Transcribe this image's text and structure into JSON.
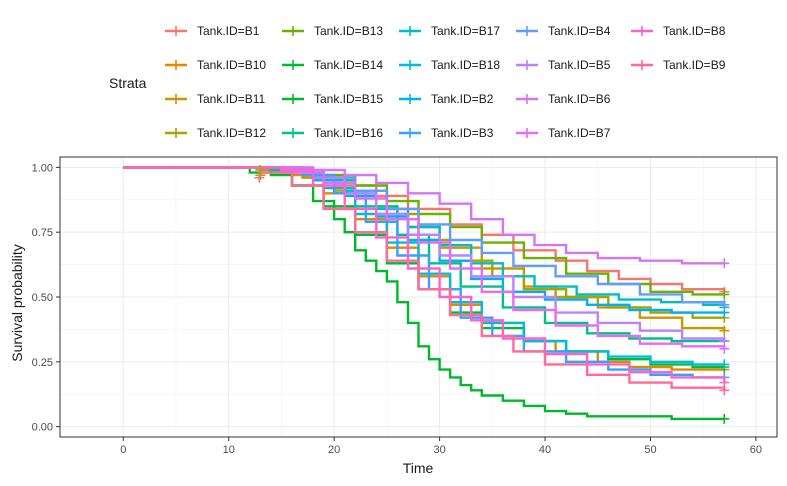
{
  "chart_data": {
    "type": "line",
    "step": true,
    "xlabel": "Time",
    "ylabel": "Survival probability",
    "xlim": [
      -6,
      62
    ],
    "ylim": [
      -0.04,
      1.04
    ],
    "xticks": [
      0,
      10,
      20,
      30,
      40,
      50,
      60
    ],
    "yticks": [
      0.0,
      0.25,
      0.5,
      0.75,
      1.0
    ],
    "ytick_labels": [
      "0.00",
      "0.25",
      "0.50",
      "0.75",
      "1.00"
    ],
    "grid": true,
    "legend": {
      "title": "Strata",
      "position": "top",
      "columns": [
        [
          "Tank.ID=B1",
          "Tank.ID=B10",
          "Tank.ID=B11",
          "Tank.ID=B12"
        ],
        [
          "Tank.ID=B13",
          "Tank.ID=B14",
          "Tank.ID=B15",
          "Tank.ID=B16"
        ],
        [
          "Tank.ID=B17",
          "Tank.ID=B18",
          "Tank.ID=B2",
          "Tank.ID=B3"
        ],
        [
          "Tank.ID=B4",
          "Tank.ID=B5",
          "Tank.ID=B6",
          "Tank.ID=B7"
        ],
        [
          "Tank.ID=B8",
          "Tank.ID=B9"
        ]
      ]
    },
    "series": [
      {
        "name": "Tank.ID=B1",
        "color": "#F8766D",
        "x": [
          0,
          14,
          17,
          20,
          24,
          27,
          31,
          34,
          37,
          41,
          44,
          47,
          50,
          53,
          57
        ],
        "y": [
          1,
          0.99,
          0.97,
          0.93,
          0.89,
          0.84,
          0.78,
          0.74,
          0.68,
          0.64,
          0.6,
          0.57,
          0.55,
          0.53,
          0.52
        ]
      },
      {
        "name": "Tank.ID=B10",
        "color": "#E58700",
        "x": [
          0,
          16,
          19,
          22,
          25,
          28,
          31,
          34,
          38,
          41,
          45,
          48,
          52,
          57
        ],
        "y": [
          1,
          0.97,
          0.9,
          0.8,
          0.69,
          0.58,
          0.47,
          0.4,
          0.33,
          0.29,
          0.25,
          0.23,
          0.22,
          0.22
        ]
      },
      {
        "name": "Tank.ID=B11",
        "color": "#C99800",
        "x": [
          0,
          13,
          17,
          20,
          24,
          27,
          30,
          34,
          38,
          41,
          45,
          49,
          53,
          57
        ],
        "y": [
          1,
          0.99,
          0.96,
          0.91,
          0.84,
          0.77,
          0.69,
          0.61,
          0.54,
          0.5,
          0.46,
          0.42,
          0.38,
          0.37
        ]
      },
      {
        "name": "Tank.ID=B12",
        "color": "#A3A500",
        "x": [
          0,
          14,
          18,
          21,
          25,
          28,
          31,
          35,
          38,
          42,
          46,
          50,
          54,
          57
        ],
        "y": [
          1,
          0.99,
          0.97,
          0.91,
          0.82,
          0.72,
          0.64,
          0.58,
          0.53,
          0.5,
          0.46,
          0.44,
          0.42,
          0.42
        ]
      },
      {
        "name": "Tank.ID=B13",
        "color": "#6BB100",
        "x": [
          0,
          15,
          18,
          22,
          25,
          28,
          31,
          34,
          38,
          42,
          46,
          50,
          54,
          57
        ],
        "y": [
          1,
          0.99,
          0.97,
          0.93,
          0.87,
          0.82,
          0.77,
          0.71,
          0.65,
          0.59,
          0.55,
          0.52,
          0.51,
          0.51
        ]
      },
      {
        "name": "Tank.ID=B14",
        "color": "#00BA38",
        "x": [
          0,
          12,
          16,
          19,
          22,
          25,
          28,
          31,
          34,
          38,
          42,
          46,
          50,
          54,
          57
        ],
        "y": [
          1,
          0.98,
          0.93,
          0.85,
          0.74,
          0.63,
          0.53,
          0.44,
          0.38,
          0.33,
          0.29,
          0.26,
          0.24,
          0.23,
          0.23
        ]
      },
      {
        "name": "Tank.ID=B15",
        "color": "#00B82B",
        "x": [
          0,
          14,
          16,
          18,
          20,
          21,
          22,
          23,
          24,
          25,
          26,
          27,
          28,
          29,
          30,
          31,
          32,
          33,
          34,
          36,
          38,
          40,
          42,
          44,
          48,
          52,
          57
        ],
        "y": [
          1,
          0.97,
          0.93,
          0.87,
          0.8,
          0.75,
          0.68,
          0.64,
          0.6,
          0.56,
          0.48,
          0.4,
          0.31,
          0.26,
          0.22,
          0.19,
          0.16,
          0.14,
          0.12,
          0.1,
          0.08,
          0.06,
          0.05,
          0.04,
          0.04,
          0.03,
          0.03
        ]
      },
      {
        "name": "Tank.ID=B16",
        "color": "#00C08B",
        "x": [
          0,
          14,
          18,
          22,
          26,
          29,
          32,
          36,
          40,
          44,
          48,
          52,
          57
        ],
        "y": [
          1,
          0.99,
          0.95,
          0.85,
          0.74,
          0.63,
          0.54,
          0.46,
          0.4,
          0.36,
          0.34,
          0.33,
          0.33
        ]
      },
      {
        "name": "Tank.ID=B17",
        "color": "#00BFC4",
        "x": [
          0,
          15,
          18,
          21,
          24,
          27,
          30,
          33,
          36,
          39,
          43,
          47,
          51,
          55,
          57
        ],
        "y": [
          1,
          0.99,
          0.96,
          0.91,
          0.84,
          0.77,
          0.7,
          0.63,
          0.58,
          0.54,
          0.51,
          0.49,
          0.48,
          0.47,
          0.46
        ]
      },
      {
        "name": "Tank.ID=B18",
        "color": "#00BCD8",
        "x": [
          0,
          16,
          19,
          22,
          25,
          28,
          31,
          34,
          38,
          42,
          46,
          50,
          54,
          57
        ],
        "y": [
          1,
          0.98,
          0.92,
          0.82,
          0.71,
          0.59,
          0.48,
          0.4,
          0.33,
          0.29,
          0.27,
          0.25,
          0.24,
          0.24
        ]
      },
      {
        "name": "Tank.ID=B2",
        "color": "#00B0F6",
        "x": [
          0,
          15,
          18,
          21,
          24,
          27,
          30,
          33,
          36,
          40,
          44,
          48,
          52,
          57
        ],
        "y": [
          1,
          0.99,
          0.95,
          0.89,
          0.81,
          0.72,
          0.64,
          0.57,
          0.52,
          0.49,
          0.47,
          0.45,
          0.44,
          0.44
        ]
      },
      {
        "name": "Tank.ID=B3",
        "color": "#35A2FF",
        "x": [
          0,
          17,
          20,
          23,
          26,
          29,
          32,
          35,
          38,
          42,
          46,
          50,
          54,
          57
        ],
        "y": [
          1,
          0.97,
          0.9,
          0.79,
          0.66,
          0.53,
          0.42,
          0.35,
          0.29,
          0.25,
          0.22,
          0.2,
          0.19,
          0.19
        ]
      },
      {
        "name": "Tank.ID=B4",
        "color": "#619CFF",
        "x": [
          0,
          16,
          19,
          22,
          25,
          28,
          31,
          34,
          37,
          41,
          45,
          49,
          53,
          57
        ],
        "y": [
          1,
          0.99,
          0.96,
          0.91,
          0.84,
          0.78,
          0.72,
          0.67,
          0.62,
          0.58,
          0.55,
          0.51,
          0.48,
          0.47
        ]
      },
      {
        "name": "Tank.ID=B5",
        "color": "#B983FF",
        "x": [
          0,
          15,
          18,
          21,
          24,
          27,
          30,
          33,
          37,
          41,
          45,
          49,
          53,
          57
        ],
        "y": [
          1,
          0.99,
          0.96,
          0.9,
          0.82,
          0.74,
          0.66,
          0.58,
          0.5,
          0.44,
          0.4,
          0.37,
          0.34,
          0.33
        ]
      },
      {
        "name": "Tank.ID=B6",
        "color": "#D674F8",
        "x": [
          0,
          18,
          21,
          24,
          27,
          30,
          33,
          36,
          39,
          42,
          45,
          49,
          53,
          57
        ],
        "y": [
          1,
          0.99,
          0.97,
          0.94,
          0.9,
          0.86,
          0.8,
          0.74,
          0.7,
          0.67,
          0.65,
          0.64,
          0.63,
          0.63
        ]
      },
      {
        "name": "Tank.ID=B7",
        "color": "#E76BF3",
        "x": [
          0,
          16,
          19,
          22,
          25,
          28,
          31,
          34,
          37,
          41,
          45,
          49,
          53,
          57
        ],
        "y": [
          1,
          0.98,
          0.94,
          0.88,
          0.8,
          0.71,
          0.61,
          0.52,
          0.45,
          0.39,
          0.35,
          0.32,
          0.31,
          0.3
        ]
      },
      {
        "name": "Tank.ID=B8",
        "color": "#FD61D1",
        "x": [
          0,
          15,
          18,
          21,
          24,
          27,
          30,
          33,
          36,
          40,
          44,
          48,
          52,
          57
        ],
        "y": [
          1,
          0.99,
          0.93,
          0.84,
          0.73,
          0.61,
          0.5,
          0.41,
          0.34,
          0.28,
          0.24,
          0.21,
          0.19,
          0.17
        ]
      },
      {
        "name": "Tank.ID=B9",
        "color": "#FF6A98",
        "x": [
          0,
          13,
          16,
          19,
          22,
          25,
          28,
          31,
          34,
          37,
          40,
          44,
          48,
          52,
          57
        ],
        "y": [
          1,
          0.98,
          0.93,
          0.84,
          0.75,
          0.64,
          0.53,
          0.43,
          0.35,
          0.29,
          0.24,
          0.2,
          0.17,
          0.15,
          0.14
        ]
      }
    ]
  }
}
